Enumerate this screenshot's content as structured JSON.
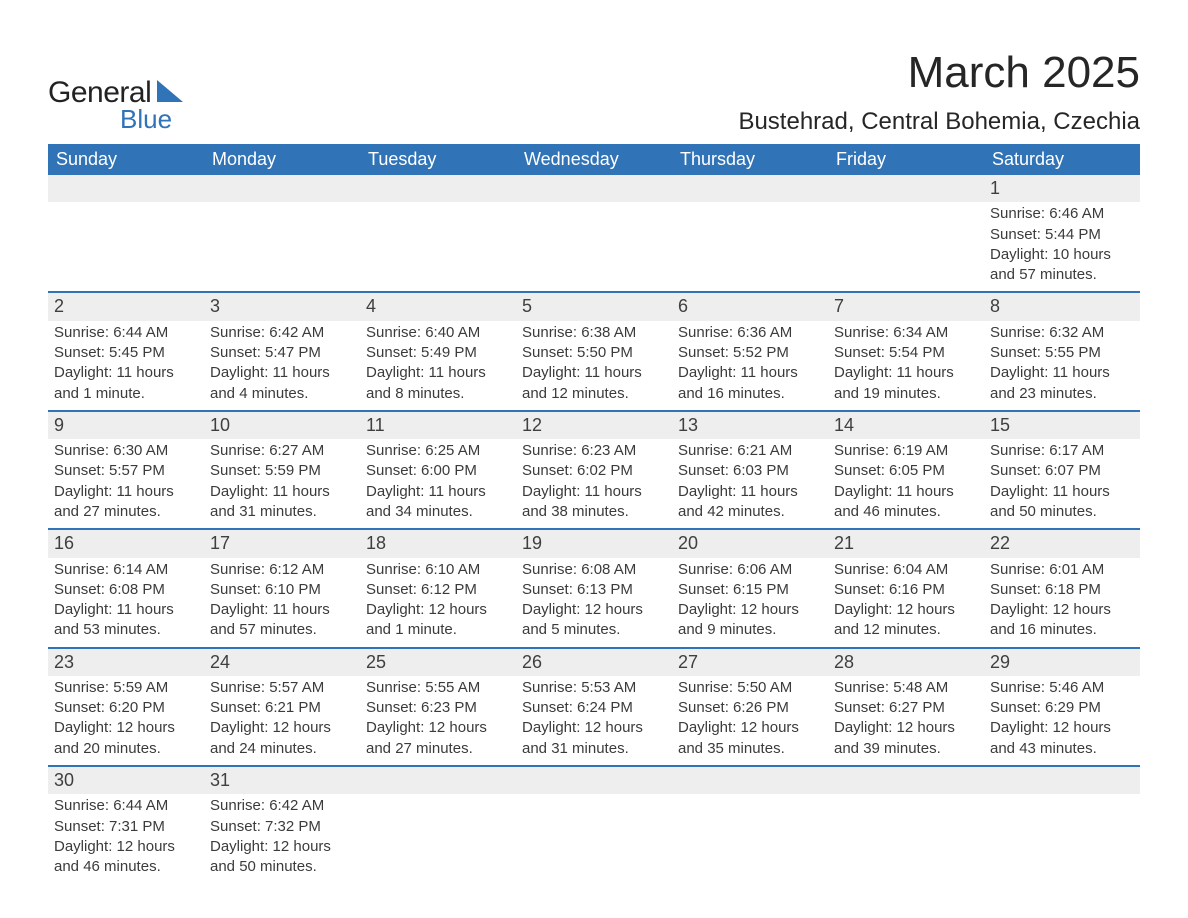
{
  "logo": {
    "word1": "General",
    "word2": "Blue",
    "text_color": "#222222",
    "accent_color": "#3073b7"
  },
  "title": {
    "month": "March 2025",
    "location": "Bustehrad, Central Bohemia, Czechia",
    "title_fontsize": 44,
    "location_fontsize": 24
  },
  "colors": {
    "header_bg": "#3073b7",
    "header_text": "#ffffff",
    "daynum_bg": "#eeeeee",
    "row_divider": "#3073b7",
    "body_text": "#3b3b3b",
    "page_bg": "#ffffff"
  },
  "days_of_week": [
    "Sunday",
    "Monday",
    "Tuesday",
    "Wednesday",
    "Thursday",
    "Friday",
    "Saturday"
  ],
  "weeks": [
    [
      null,
      null,
      null,
      null,
      null,
      null,
      {
        "n": "1",
        "sunrise": "Sunrise: 6:46 AM",
        "sunset": "Sunset: 5:44 PM",
        "daylight1": "Daylight: 10 hours",
        "daylight2": "and 57 minutes."
      }
    ],
    [
      {
        "n": "2",
        "sunrise": "Sunrise: 6:44 AM",
        "sunset": "Sunset: 5:45 PM",
        "daylight1": "Daylight: 11 hours",
        "daylight2": "and 1 minute."
      },
      {
        "n": "3",
        "sunrise": "Sunrise: 6:42 AM",
        "sunset": "Sunset: 5:47 PM",
        "daylight1": "Daylight: 11 hours",
        "daylight2": "and 4 minutes."
      },
      {
        "n": "4",
        "sunrise": "Sunrise: 6:40 AM",
        "sunset": "Sunset: 5:49 PM",
        "daylight1": "Daylight: 11 hours",
        "daylight2": "and 8 minutes."
      },
      {
        "n": "5",
        "sunrise": "Sunrise: 6:38 AM",
        "sunset": "Sunset: 5:50 PM",
        "daylight1": "Daylight: 11 hours",
        "daylight2": "and 12 minutes."
      },
      {
        "n": "6",
        "sunrise": "Sunrise: 6:36 AM",
        "sunset": "Sunset: 5:52 PM",
        "daylight1": "Daylight: 11 hours",
        "daylight2": "and 16 minutes."
      },
      {
        "n": "7",
        "sunrise": "Sunrise: 6:34 AM",
        "sunset": "Sunset: 5:54 PM",
        "daylight1": "Daylight: 11 hours",
        "daylight2": "and 19 minutes."
      },
      {
        "n": "8",
        "sunrise": "Sunrise: 6:32 AM",
        "sunset": "Sunset: 5:55 PM",
        "daylight1": "Daylight: 11 hours",
        "daylight2": "and 23 minutes."
      }
    ],
    [
      {
        "n": "9",
        "sunrise": "Sunrise: 6:30 AM",
        "sunset": "Sunset: 5:57 PM",
        "daylight1": "Daylight: 11 hours",
        "daylight2": "and 27 minutes."
      },
      {
        "n": "10",
        "sunrise": "Sunrise: 6:27 AM",
        "sunset": "Sunset: 5:59 PM",
        "daylight1": "Daylight: 11 hours",
        "daylight2": "and 31 minutes."
      },
      {
        "n": "11",
        "sunrise": "Sunrise: 6:25 AM",
        "sunset": "Sunset: 6:00 PM",
        "daylight1": "Daylight: 11 hours",
        "daylight2": "and 34 minutes."
      },
      {
        "n": "12",
        "sunrise": "Sunrise: 6:23 AM",
        "sunset": "Sunset: 6:02 PM",
        "daylight1": "Daylight: 11 hours",
        "daylight2": "and 38 minutes."
      },
      {
        "n": "13",
        "sunrise": "Sunrise: 6:21 AM",
        "sunset": "Sunset: 6:03 PM",
        "daylight1": "Daylight: 11 hours",
        "daylight2": "and 42 minutes."
      },
      {
        "n": "14",
        "sunrise": "Sunrise: 6:19 AM",
        "sunset": "Sunset: 6:05 PM",
        "daylight1": "Daylight: 11 hours",
        "daylight2": "and 46 minutes."
      },
      {
        "n": "15",
        "sunrise": "Sunrise: 6:17 AM",
        "sunset": "Sunset: 6:07 PM",
        "daylight1": "Daylight: 11 hours",
        "daylight2": "and 50 minutes."
      }
    ],
    [
      {
        "n": "16",
        "sunrise": "Sunrise: 6:14 AM",
        "sunset": "Sunset: 6:08 PM",
        "daylight1": "Daylight: 11 hours",
        "daylight2": "and 53 minutes."
      },
      {
        "n": "17",
        "sunrise": "Sunrise: 6:12 AM",
        "sunset": "Sunset: 6:10 PM",
        "daylight1": "Daylight: 11 hours",
        "daylight2": "and 57 minutes."
      },
      {
        "n": "18",
        "sunrise": "Sunrise: 6:10 AM",
        "sunset": "Sunset: 6:12 PM",
        "daylight1": "Daylight: 12 hours",
        "daylight2": "and 1 minute."
      },
      {
        "n": "19",
        "sunrise": "Sunrise: 6:08 AM",
        "sunset": "Sunset: 6:13 PM",
        "daylight1": "Daylight: 12 hours",
        "daylight2": "and 5 minutes."
      },
      {
        "n": "20",
        "sunrise": "Sunrise: 6:06 AM",
        "sunset": "Sunset: 6:15 PM",
        "daylight1": "Daylight: 12 hours",
        "daylight2": "and 9 minutes."
      },
      {
        "n": "21",
        "sunrise": "Sunrise: 6:04 AM",
        "sunset": "Sunset: 6:16 PM",
        "daylight1": "Daylight: 12 hours",
        "daylight2": "and 12 minutes."
      },
      {
        "n": "22",
        "sunrise": "Sunrise: 6:01 AM",
        "sunset": "Sunset: 6:18 PM",
        "daylight1": "Daylight: 12 hours",
        "daylight2": "and 16 minutes."
      }
    ],
    [
      {
        "n": "23",
        "sunrise": "Sunrise: 5:59 AM",
        "sunset": "Sunset: 6:20 PM",
        "daylight1": "Daylight: 12 hours",
        "daylight2": "and 20 minutes."
      },
      {
        "n": "24",
        "sunrise": "Sunrise: 5:57 AM",
        "sunset": "Sunset: 6:21 PM",
        "daylight1": "Daylight: 12 hours",
        "daylight2": "and 24 minutes."
      },
      {
        "n": "25",
        "sunrise": "Sunrise: 5:55 AM",
        "sunset": "Sunset: 6:23 PM",
        "daylight1": "Daylight: 12 hours",
        "daylight2": "and 27 minutes."
      },
      {
        "n": "26",
        "sunrise": "Sunrise: 5:53 AM",
        "sunset": "Sunset: 6:24 PM",
        "daylight1": "Daylight: 12 hours",
        "daylight2": "and 31 minutes."
      },
      {
        "n": "27",
        "sunrise": "Sunrise: 5:50 AM",
        "sunset": "Sunset: 6:26 PM",
        "daylight1": "Daylight: 12 hours",
        "daylight2": "and 35 minutes."
      },
      {
        "n": "28",
        "sunrise": "Sunrise: 5:48 AM",
        "sunset": "Sunset: 6:27 PM",
        "daylight1": "Daylight: 12 hours",
        "daylight2": "and 39 minutes."
      },
      {
        "n": "29",
        "sunrise": "Sunrise: 5:46 AM",
        "sunset": "Sunset: 6:29 PM",
        "daylight1": "Daylight: 12 hours",
        "daylight2": "and 43 minutes."
      }
    ],
    [
      {
        "n": "30",
        "sunrise": "Sunrise: 6:44 AM",
        "sunset": "Sunset: 7:31 PM",
        "daylight1": "Daylight: 12 hours",
        "daylight2": "and 46 minutes."
      },
      {
        "n": "31",
        "sunrise": "Sunrise: 6:42 AM",
        "sunset": "Sunset: 7:32 PM",
        "daylight1": "Daylight: 12 hours",
        "daylight2": "and 50 minutes."
      },
      null,
      null,
      null,
      null,
      null
    ]
  ]
}
